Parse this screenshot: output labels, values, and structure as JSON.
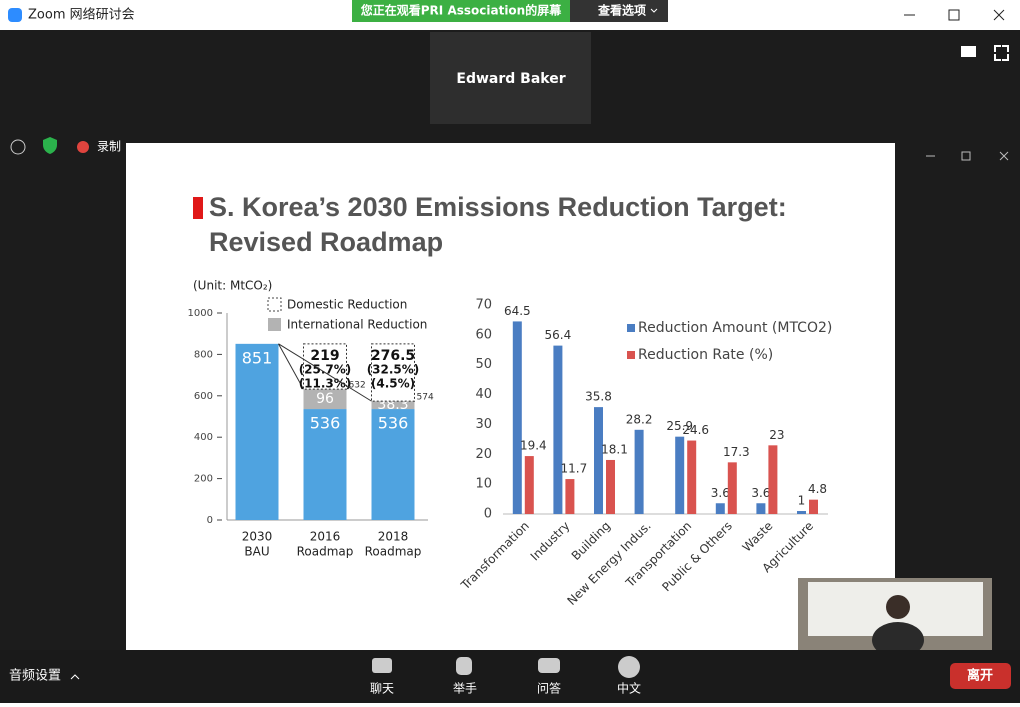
{
  "window": {
    "title": "Zoom 网络研讨会",
    "banner": "您正在观看PRI  Association的屏幕",
    "view_options": "查看选项"
  },
  "speaker": "Edward Baker",
  "status": {
    "recording": "录制"
  },
  "slide": {
    "title_line1": "S. Korea’s 2030 Emissions Reduction Target:",
    "title_line2": "Revised Roadmap",
    "left_chart": {
      "type": "stacked_bar",
      "unit": "(Unit: MtCO₂)",
      "categories": [
        [
          "2030",
          "BAU"
        ],
        [
          "2016",
          "Roadmap"
        ],
        [
          "2018",
          "Roadmap"
        ]
      ],
      "ylim": [
        0,
        1000
      ],
      "yticks": [
        0,
        200,
        400,
        600,
        800,
        1000
      ],
      "series": [
        {
          "color": "#4fa3e0",
          "values": [
            851,
            536,
            536
          ]
        },
        {
          "name": "International  Reduction",
          "color": "#b3b3b3",
          "values": [
            null,
            96,
            38.3
          ]
        },
        {
          "name": "Domestic Reduction",
          "color": "#ffffff",
          "border": "dashed",
          "values": [
            null,
            219,
            276.5
          ],
          "notes": [
            null,
            [
              "(25.7%)",
              "(11.3%)"
            ],
            [
              "(32.5%)",
              "(4.5%)"
            ]
          ]
        }
      ],
      "totals": [
        null,
        632,
        574
      ]
    },
    "right_chart": {
      "type": "bar",
      "categories": [
        "Transformation",
        "Industry",
        "Building",
        "New Energy Indus.",
        "Transportation",
        "Public & Others",
        "Waste",
        "Agriculture"
      ],
      "ylim": [
        0,
        70
      ],
      "yticks": [
        0,
        10,
        20,
        30,
        40,
        50,
        60,
        70
      ],
      "series": [
        {
          "name": "Reduction Amount (MTCO2)",
          "color": "#4a7dc2",
          "values": [
            64.5,
            56.4,
            35.8,
            28.2,
            25.9,
            3.6,
            3.6,
            1
          ]
        },
        {
          "name": "Reduction Rate (%)",
          "color": "#d9534f",
          "values": [
            19.4,
            11.7,
            18.1,
            null,
            24.6,
            17.3,
            23,
            4.8
          ]
        }
      ]
    }
  },
  "toolbar": {
    "audio": "音频设置",
    "items": [
      "聊天",
      "举手",
      "问答",
      "中文"
    ],
    "leave": "离开"
  }
}
